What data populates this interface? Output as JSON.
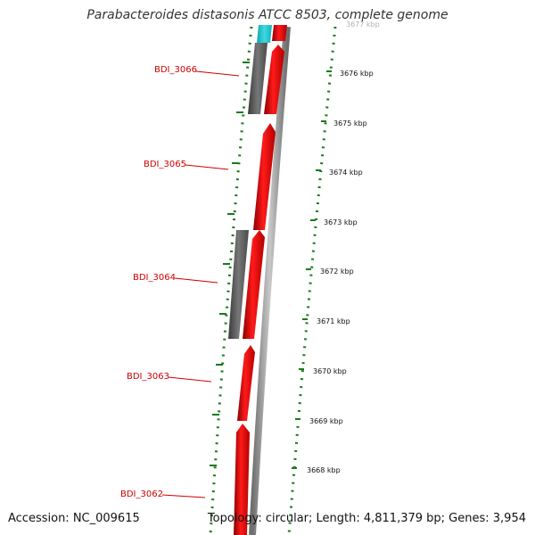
{
  "title": "Parabacteroides distasonis ATCC 8503, complete genome",
  "footer": {
    "accession": "Accession: NC_009615",
    "topology": "Topology: circular; Length: 4,811,379 bp; Genes: 3,954"
  },
  "colors": {
    "cds_forward": "#ff0000",
    "cds_other": "#666666",
    "rna": "#22c8d2",
    "backbone": "#808080",
    "gc_skew": "#1a7a1a",
    "gene_label": "#cc0000"
  },
  "kbp_markers": [
    "3677 kbp",
    "3676 kbp",
    "3675 kbp",
    "3674 kbp",
    "3673 kbp",
    "3672 kbp",
    "3671 kbp",
    "3670 kbp",
    "3669 kbp",
    "3668 kbp"
  ],
  "gene_labels": [
    "BDI_3066",
    "BDI_3065",
    "BDI_3064",
    "BDI_3063",
    "BDI_3062"
  ]
}
